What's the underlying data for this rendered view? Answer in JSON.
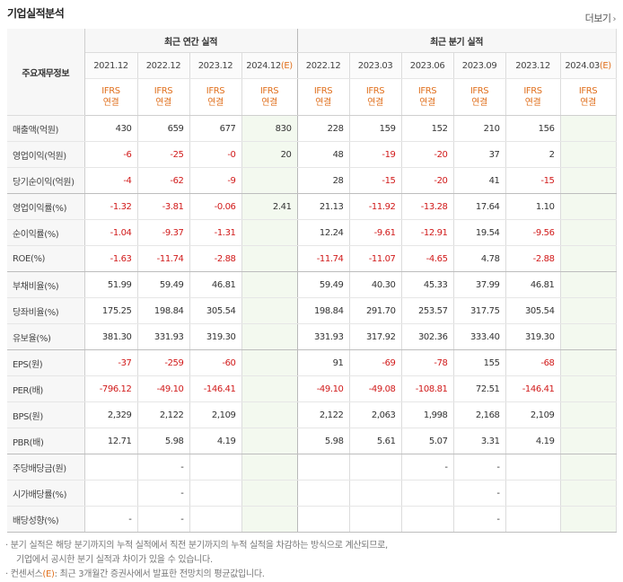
{
  "header": {
    "title": "기업실적분석",
    "more_label": "더보기",
    "more_arrow": "›"
  },
  "table": {
    "row_header": "주요재무정보",
    "groups": {
      "annual": "최근 연간 실적",
      "quarterly": "최근 분기 실적"
    },
    "periods": [
      "2021.12",
      "2022.12",
      "2023.12",
      "2024.12",
      "2022.12",
      "2023.03",
      "2023.06",
      "2023.09",
      "2023.12",
      "2024.03"
    ],
    "estimate_suffix": "(E)",
    "ifrs_top": "IFRS",
    "ifrs_bottom": "연결",
    "rows": [
      {
        "label": "매출액(억원)",
        "values": [
          "430",
          "659",
          "677",
          "830",
          "228",
          "159",
          "152",
          "210",
          "156",
          ""
        ]
      },
      {
        "label": "영업이익(억원)",
        "values": [
          "-6",
          "-25",
          "-0",
          "20",
          "48",
          "-19",
          "-20",
          "37",
          "2",
          ""
        ]
      },
      {
        "label": "당기순이익(억원)",
        "values": [
          "-4",
          "-62",
          "-9",
          "",
          "28",
          "-15",
          "-20",
          "41",
          "-15",
          ""
        ]
      },
      {
        "label": "영업이익률(%)",
        "values": [
          "-1.32",
          "-3.81",
          "-0.06",
          "2.41",
          "21.13",
          "-11.92",
          "-13.28",
          "17.64",
          "1.10",
          ""
        ]
      },
      {
        "label": "순이익률(%)",
        "values": [
          "-1.04",
          "-9.37",
          "-1.31",
          "",
          "12.24",
          "-9.61",
          "-12.91",
          "19.54",
          "-9.56",
          ""
        ]
      },
      {
        "label": "ROE(%)",
        "values": [
          "-1.63",
          "-11.74",
          "-2.88",
          "",
          "-11.74",
          "-11.07",
          "-4.65",
          "4.78",
          "-2.88",
          ""
        ]
      },
      {
        "label": "부채비율(%)",
        "values": [
          "51.99",
          "59.49",
          "46.81",
          "",
          "59.49",
          "40.30",
          "45.33",
          "37.99",
          "46.81",
          ""
        ]
      },
      {
        "label": "당좌비율(%)",
        "values": [
          "175.25",
          "198.84",
          "305.54",
          "",
          "198.84",
          "291.70",
          "253.57",
          "317.75",
          "305.54",
          ""
        ]
      },
      {
        "label": "유보율(%)",
        "values": [
          "381.30",
          "331.93",
          "319.30",
          "",
          "331.93",
          "317.92",
          "302.36",
          "333.40",
          "319.30",
          ""
        ]
      },
      {
        "label": "EPS(원)",
        "values": [
          "-37",
          "-259",
          "-60",
          "",
          "91",
          "-69",
          "-78",
          "155",
          "-68",
          ""
        ]
      },
      {
        "label": "PER(배)",
        "values": [
          "-796.12",
          "-49.10",
          "-146.41",
          "",
          "-49.10",
          "-49.08",
          "-108.81",
          "72.51",
          "-146.41",
          ""
        ]
      },
      {
        "label": "BPS(원)",
        "values": [
          "2,329",
          "2,122",
          "2,109",
          "",
          "2,122",
          "2,063",
          "1,998",
          "2,168",
          "2,109",
          ""
        ]
      },
      {
        "label": "PBR(배)",
        "values": [
          "12.71",
          "5.98",
          "4.19",
          "",
          "5.98",
          "5.61",
          "5.07",
          "3.31",
          "4.19",
          ""
        ]
      },
      {
        "label": "주당배당금(원)",
        "values": [
          "",
          "-",
          "",
          "",
          "",
          "",
          "-",
          "-",
          "",
          ""
        ]
      },
      {
        "label": "시가배당률(%)",
        "values": [
          "",
          "-",
          "",
          "",
          "",
          "",
          "",
          "-",
          "",
          ""
        ]
      },
      {
        "label": "배당성향(%)",
        "values": [
          "-",
          "-",
          "",
          "",
          "",
          "",
          "",
          "-",
          "",
          ""
        ]
      }
    ]
  },
  "notes": {
    "line1": "분기 실적은 해당 분기까지의 누적 실적에서 직전 분기까지의 누적 실적을 차감하는 방식으로 계산되므로,",
    "line2": "기업에서 공시한 분기 실적과 차이가 있을 수 있습니다.",
    "line3_a": "컨센서스",
    "line3_e": "(E)",
    "line3_b": ": 최근 3개월간 증권사에서 발표한 전망치의 평균값입니다."
  },
  "colors": {
    "negative": "#d11a1a",
    "ifrs": "#e0701e",
    "estimate_bg": "#f3f9ef"
  }
}
